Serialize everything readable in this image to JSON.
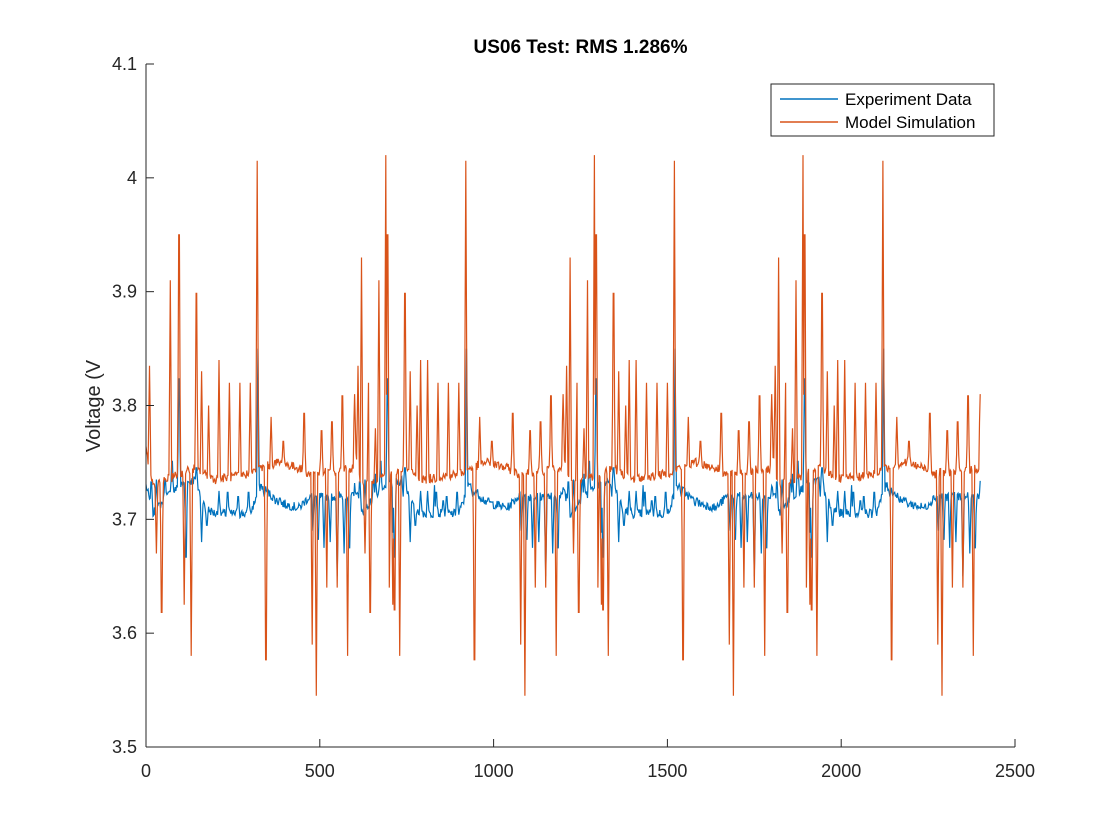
{
  "chart_data": {
    "type": "line",
    "title": "US06 Test: RMS 1.286%",
    "xlabel": "",
    "ylabel": "Voltage (V",
    "xlim": [
      0,
      2500
    ],
    "ylim": [
      3.5,
      4.1
    ],
    "xticks": [
      0,
      500,
      1000,
      1500,
      2000,
      2500
    ],
    "yticks": [
      3.5,
      3.6,
      3.7,
      3.8,
      3.9,
      4.0,
      4.1
    ],
    "xtick_labels": [
      "0",
      "500",
      "1000",
      "1500",
      "2000",
      "2500"
    ],
    "ytick_labels": [
      "3.5",
      "3.6",
      "3.7",
      "3.8",
      "3.9",
      "4",
      "4.1"
    ],
    "grid": false,
    "legend_position": "top-right",
    "cycle_period": 600,
    "x_end": 2400,
    "series": [
      {
        "name": "Experiment Data",
        "color": "#0072BD",
        "baseline": [
          [
            0,
            3.73
          ],
          [
            20,
            3.705
          ],
          [
            60,
            3.72
          ],
          [
            100,
            3.73
          ],
          [
            140,
            3.735
          ],
          [
            170,
            3.71
          ],
          [
            200,
            3.705
          ],
          [
            300,
            3.705
          ],
          [
            330,
            3.73
          ],
          [
            380,
            3.715
          ],
          [
            440,
            3.71
          ],
          [
            470,
            3.72
          ],
          [
            600,
            3.72
          ]
        ],
        "spikes": [
          [
            15,
            3.74
          ],
          [
            30,
            3.735
          ],
          [
            55,
            3.74
          ],
          [
            75,
            3.76
          ],
          [
            95,
            3.855
          ],
          [
            115,
            3.645
          ],
          [
            145,
            3.75
          ],
          [
            160,
            3.68
          ],
          [
            175,
            3.69
          ],
          [
            210,
            3.725
          ],
          [
            235,
            3.73
          ],
          [
            265,
            3.725
          ],
          [
            295,
            3.73
          ],
          [
            322,
            3.85
          ],
          [
            340,
            3.72
          ],
          [
            385,
            3.72
          ],
          [
            480,
            3.69
          ],
          [
            495,
            3.67
          ],
          [
            512,
            3.675
          ],
          [
            530,
            3.68
          ],
          [
            550,
            3.65
          ],
          [
            570,
            3.67
          ],
          [
            585,
            3.66
          ],
          [
            612,
            3.73
          ],
          [
            630,
            3.73
          ],
          [
            660,
            3.74
          ],
          [
            695,
            3.86
          ],
          [
            712,
            3.645
          ],
          [
            740,
            3.72
          ],
          [
            760,
            3.68
          ],
          [
            790,
            3.725
          ],
          [
            830,
            3.73
          ],
          [
            855,
            3.72
          ]
        ]
      },
      {
        "name": "Model Simulation",
        "color": "#D95319",
        "baseline": [
          [
            0,
            3.76
          ],
          [
            20,
            3.73
          ],
          [
            60,
            3.735
          ],
          [
            100,
            3.74
          ],
          [
            140,
            3.745
          ],
          [
            170,
            3.74
          ],
          [
            200,
            3.735
          ],
          [
            300,
            3.74
          ],
          [
            330,
            3.745
          ],
          [
            380,
            3.75
          ],
          [
            440,
            3.745
          ],
          [
            470,
            3.74
          ],
          [
            600,
            3.745
          ]
        ],
        "spikes": [
          [
            10,
            3.835
          ],
          [
            30,
            3.67
          ],
          [
            45,
            3.58
          ],
          [
            70,
            3.91
          ],
          [
            95,
            4.02
          ],
          [
            110,
            3.625
          ],
          [
            130,
            3.58
          ],
          [
            145,
            3.95
          ],
          [
            160,
            3.83
          ],
          [
            180,
            3.8
          ],
          [
            210,
            3.84
          ],
          [
            240,
            3.82
          ],
          [
            270,
            3.82
          ],
          [
            300,
            3.82
          ],
          [
            320,
            4.015
          ],
          [
            345,
            3.52
          ],
          [
            360,
            3.79
          ],
          [
            395,
            3.775
          ],
          [
            455,
            3.81
          ],
          [
            478,
            3.59
          ],
          [
            490,
            3.545
          ],
          [
            505,
            3.79
          ],
          [
            520,
            3.64
          ],
          [
            535,
            3.8
          ],
          [
            550,
            3.64
          ],
          [
            565,
            3.83
          ],
          [
            580,
            3.58
          ],
          [
            600,
            3.81
          ],
          [
            620,
            3.93
          ],
          [
            640,
            3.82
          ],
          [
            660,
            3.78
          ],
          [
            690,
            4.02
          ],
          [
            700,
            3.64
          ],
          [
            715,
            3.58
          ],
          [
            730,
            3.94
          ],
          [
            760,
            3.8
          ],
          [
            790,
            3.84
          ],
          [
            810,
            3.82
          ],
          [
            840,
            3.84
          ],
          [
            870,
            3.84
          ]
        ]
      }
    ]
  }
}
